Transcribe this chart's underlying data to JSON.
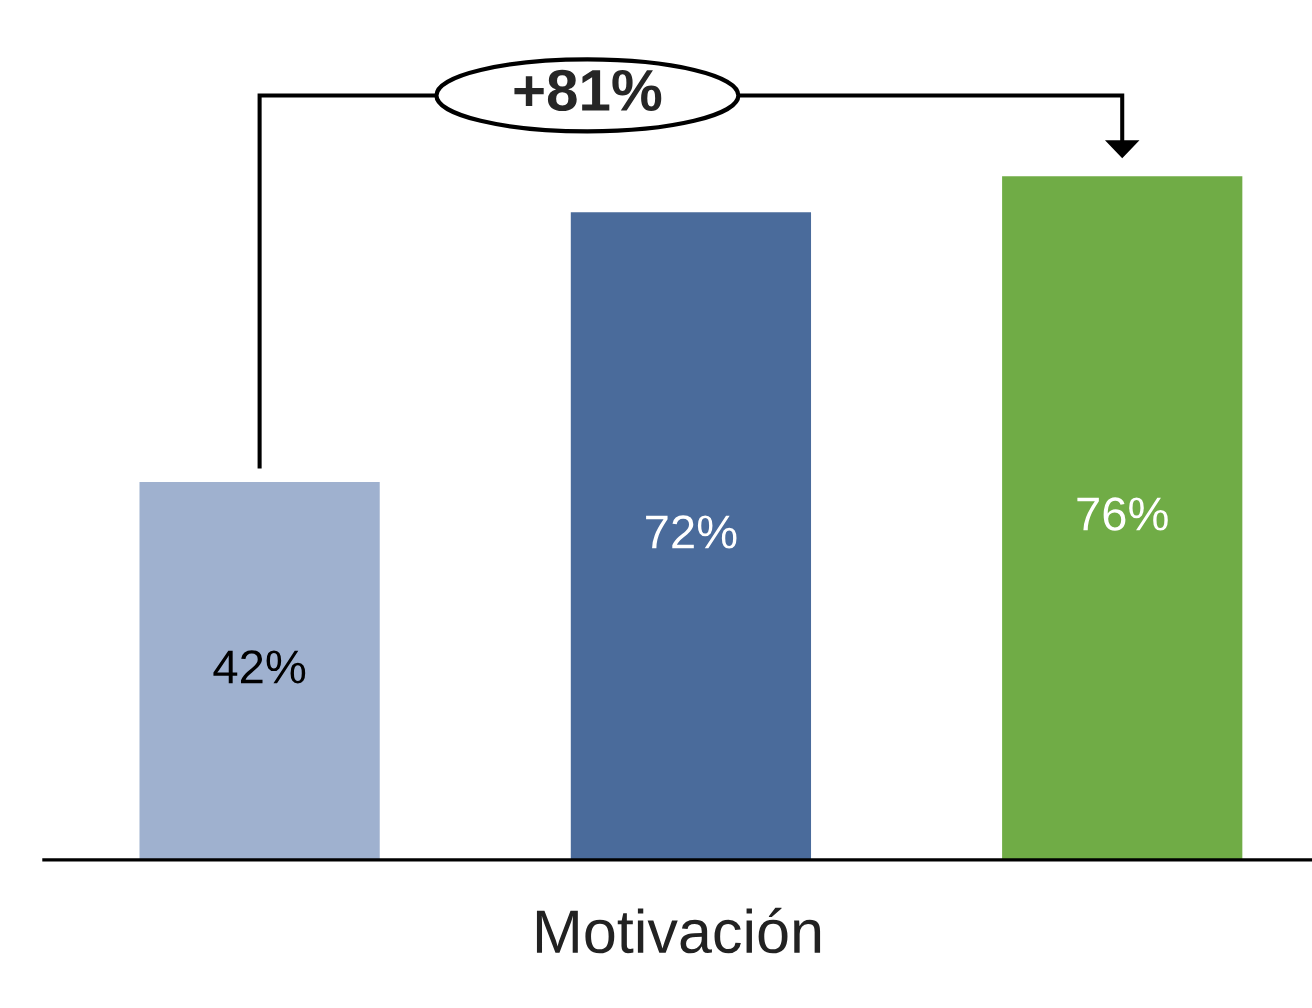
{
  "chart_data": {
    "type": "bar",
    "xlabel": "Motivación",
    "categories": [
      null,
      null,
      null
    ],
    "values": [
      42,
      72,
      76
    ],
    "colors": [
      "#9fb1cf",
      "#4a6b9b",
      "#70ac46"
    ],
    "value_labels": [
      "42%",
      "72%",
      "76%"
    ],
    "annotations": [
      "+81%"
    ]
  }
}
